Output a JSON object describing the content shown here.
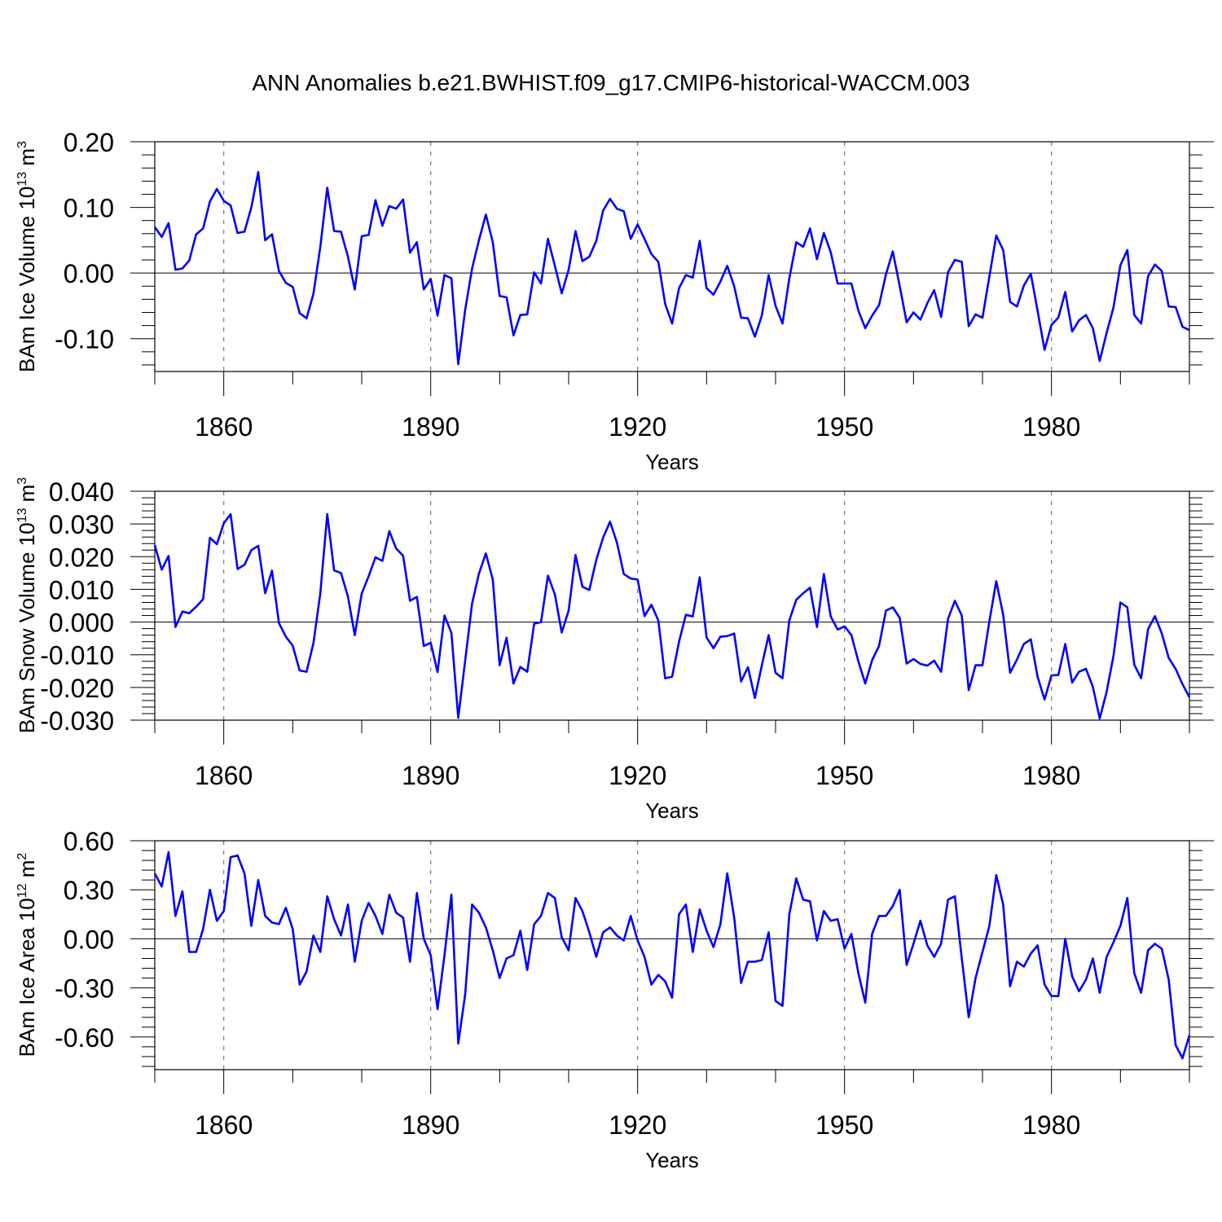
{
  "title": "ANN Anomalies b.e21.BWHIST.f09_g17.CMIP6-historical-WACCM.003",
  "chart_data": [
    {
      "type": "line",
      "ylabel": "BAm Ice Volume 10",
      "ylabel_exp": "13",
      "ylabel_unit": " m",
      "ylabel_unit_exp": "3",
      "xlabel": "Years",
      "xlim": [
        1850,
        2000
      ],
      "ylim": [
        -0.15,
        0.2
      ],
      "yticks": [
        -0.1,
        0.0,
        0.1,
        0.2
      ],
      "ytick_labels": [
        "-0.10",
        "0.00",
        "0.10",
        "0.20"
      ],
      "xticks": [
        1860,
        1890,
        1920,
        1950,
        1980
      ],
      "xtick_labels": [
        "1860",
        "1890",
        "1920",
        "1950",
        "1980"
      ],
      "x_start": 1850,
      "values": [
        0.07,
        0.055,
        0.076,
        0.005,
        0.007,
        0.019,
        0.059,
        0.068,
        0.109,
        0.128,
        0.11,
        0.103,
        0.061,
        0.063,
        0.1,
        0.154,
        0.05,
        0.059,
        0.003,
        -0.015,
        -0.021,
        -0.061,
        -0.069,
        -0.032,
        0.04,
        0.13,
        0.064,
        0.063,
        0.025,
        -0.025,
        0.056,
        0.058,
        0.111,
        0.072,
        0.102,
        0.098,
        0.112,
        0.031,
        0.047,
        -0.025,
        -0.009,
        -0.065,
        -0.003,
        -0.008,
        -0.139,
        -0.056,
        0.007,
        0.05,
        0.089,
        0.047,
        -0.035,
        -0.037,
        -0.095,
        -0.064,
        -0.063,
        0.001,
        -0.016,
        0.052,
        0.011,
        -0.031,
        0.005,
        0.064,
        0.018,
        0.025,
        0.049,
        0.095,
        0.113,
        0.098,
        0.094,
        0.052,
        0.074,
        0.052,
        0.029,
        0.017,
        -0.047,
        -0.077,
        -0.023,
        -0.003,
        -0.007,
        0.049,
        -0.023,
        -0.033,
        -0.013,
        0.011,
        -0.02,
        -0.068,
        -0.069,
        -0.097,
        -0.065,
        -0.003,
        -0.05,
        -0.077,
        -0.008,
        0.047,
        0.04,
        0.068,
        0.021,
        0.061,
        0.032,
        -0.016,
        -0.016,
        -0.016,
        -0.057,
        -0.084,
        -0.065,
        -0.049,
        -0.002,
        0.033,
        -0.02,
        -0.075,
        -0.06,
        -0.071,
        -0.046,
        -0.026,
        -0.067,
        0.001,
        0.02,
        0.017,
        -0.081,
        -0.063,
        -0.068,
        -0.005,
        0.057,
        0.035,
        -0.044,
        -0.051,
        -0.019,
        -0.001,
        -0.058,
        -0.117,
        -0.079,
        -0.068,
        -0.029,
        -0.089,
        -0.072,
        -0.064,
        -0.084,
        -0.134,
        -0.091,
        -0.052,
        0.012,
        0.035,
        -0.064,
        -0.077,
        -0.005,
        0.013,
        0.003,
        -0.051,
        -0.052,
        -0.082,
        -0.087
      ]
    },
    {
      "type": "line",
      "ylabel": "BAm Snow Volume 10",
      "ylabel_exp": "13",
      "ylabel_unit": " m",
      "ylabel_unit_exp": "3",
      "xlabel": "Years",
      "xlim": [
        1850,
        2000
      ],
      "ylim": [
        -0.03,
        0.04
      ],
      "yticks": [
        -0.03,
        -0.02,
        -0.01,
        0.0,
        0.01,
        0.02,
        0.03,
        0.04
      ],
      "ytick_labels": [
        "-0.030",
        "-0.020",
        "-0.010",
        "0.000",
        "0.010",
        "0.020",
        "0.030",
        "0.040"
      ],
      "xticks": [
        1860,
        1890,
        1920,
        1950,
        1980
      ],
      "xtick_labels": [
        "1860",
        "1890",
        "1920",
        "1950",
        "1980"
      ],
      "x_start": 1850,
      "values": [
        0.0235,
        0.016,
        0.0202,
        -0.0015,
        0.0032,
        0.0027,
        0.0047,
        0.007,
        0.0258,
        0.0238,
        0.0302,
        0.033,
        0.0162,
        0.0175,
        0.022,
        0.0233,
        0.0088,
        0.0157,
        -0.0003,
        -0.0045,
        -0.0072,
        -0.0148,
        -0.0152,
        -0.0065,
        0.0088,
        0.033,
        0.0158,
        0.015,
        0.0078,
        -0.004,
        0.0087,
        0.014,
        0.0198,
        0.0187,
        0.0278,
        0.0225,
        0.0203,
        0.0065,
        0.0077,
        -0.0073,
        -0.0063,
        -0.0153,
        0.002,
        -0.0033,
        -0.0293,
        -0.0118,
        0.0057,
        0.0148,
        0.021,
        0.013,
        -0.0132,
        -0.0048,
        -0.0188,
        -0.0137,
        -0.0152,
        -0.0005,
        0.0,
        0.0142,
        0.0085,
        -0.0032,
        0.0035,
        0.0205,
        0.0108,
        0.0098,
        0.019,
        0.0258,
        0.0307,
        0.0243,
        0.0147,
        0.0133,
        0.013,
        0.0018,
        0.0053,
        0.0005,
        -0.0172,
        -0.0167,
        -0.006,
        0.0022,
        0.0017,
        0.0137,
        -0.0047,
        -0.008,
        -0.0045,
        -0.0043,
        -0.0035,
        -0.0182,
        -0.0138,
        -0.0232,
        -0.0133,
        -0.004,
        -0.0155,
        -0.0172,
        0.0005,
        0.0068,
        0.0088,
        0.0105,
        -0.0015,
        0.0147,
        0.0017,
        -0.0023,
        -0.0013,
        -0.004,
        -0.012,
        -0.0188,
        -0.0117,
        -0.0073,
        0.0035,
        0.0045,
        0.0013,
        -0.0127,
        -0.0113,
        -0.0128,
        -0.0133,
        -0.0118,
        -0.0152,
        0.001,
        0.0065,
        0.002,
        -0.0208,
        -0.0132,
        -0.0132,
        0.0003,
        0.0125,
        0.0022,
        -0.0155,
        -0.0115,
        -0.0067,
        -0.0053,
        -0.0168,
        -0.0237,
        -0.0163,
        -0.0162,
        -0.0067,
        -0.0185,
        -0.0152,
        -0.0143,
        -0.0198,
        -0.0295,
        -0.0213,
        -0.0102,
        0.006,
        0.0045,
        -0.013,
        -0.0172,
        -0.0022,
        0.0018,
        -0.0035,
        -0.011,
        -0.0143,
        -0.019,
        -0.023
      ]
    },
    {
      "type": "line",
      "ylabel": "BAm Ice Area 10",
      "ylabel_exp": "12",
      "ylabel_unit": " m",
      "ylabel_unit_exp": "2",
      "xlabel": "Years",
      "xlim": [
        1850,
        2000
      ],
      "ylim": [
        -0.8,
        0.6
      ],
      "yticks": [
        -0.6,
        -0.3,
        0.0,
        0.3,
        0.6
      ],
      "ytick_labels": [
        "-0.60",
        "-0.30",
        "0.00",
        "0.30",
        "0.60"
      ],
      "xticks": [
        1860,
        1890,
        1920,
        1950,
        1980
      ],
      "xtick_labels": [
        "1860",
        "1890",
        "1920",
        "1950",
        "1980"
      ],
      "x_start": 1850,
      "values": [
        0.4,
        0.32,
        0.53,
        0.14,
        0.29,
        -0.08,
        -0.08,
        0.06,
        0.3,
        0.11,
        0.17,
        0.5,
        0.51,
        0.4,
        0.08,
        0.36,
        0.14,
        0.1,
        0.09,
        0.19,
        0.06,
        -0.28,
        -0.2,
        0.02,
        -0.08,
        0.26,
        0.12,
        0.02,
        0.21,
        -0.14,
        0.11,
        0.22,
        0.14,
        0.03,
        0.27,
        0.16,
        0.13,
        -0.14,
        0.28,
        0.0,
        -0.1,
        -0.43,
        -0.1,
        0.27,
        -0.64,
        -0.34,
        0.21,
        0.16,
        0.07,
        -0.07,
        -0.24,
        -0.12,
        -0.1,
        0.05,
        -0.19,
        0.09,
        0.14,
        0.28,
        0.25,
        0.01,
        -0.07,
        0.25,
        0.17,
        0.04,
        -0.11,
        0.04,
        0.07,
        0.02,
        -0.01,
        0.14,
        -0.01,
        -0.11,
        -0.28,
        -0.22,
        -0.26,
        -0.36,
        0.15,
        0.21,
        -0.08,
        0.18,
        0.05,
        -0.05,
        0.09,
        0.4,
        0.13,
        -0.27,
        -0.14,
        -0.14,
        -0.13,
        0.04,
        -0.38,
        -0.41,
        0.15,
        0.37,
        0.24,
        0.23,
        -0.01,
        0.17,
        0.11,
        0.12,
        -0.06,
        0.03,
        -0.21,
        -0.39,
        0.03,
        0.14,
        0.14,
        0.2,
        0.3,
        -0.16,
        -0.03,
        0.11,
        -0.04,
        -0.11,
        -0.03,
        0.24,
        0.26,
        -0.12,
        -0.48,
        -0.24,
        -0.08,
        0.08,
        0.39,
        0.21,
        -0.29,
        -0.14,
        -0.17,
        -0.09,
        -0.04,
        -0.28,
        -0.35,
        -0.35,
        0.0,
        -0.23,
        -0.32,
        -0.25,
        -0.12,
        -0.33,
        -0.11,
        -0.02,
        0.08,
        0.25,
        -0.21,
        -0.33,
        -0.07,
        -0.03,
        -0.06,
        -0.25,
        -0.65,
        -0.73,
        -0.59
      ]
    }
  ]
}
